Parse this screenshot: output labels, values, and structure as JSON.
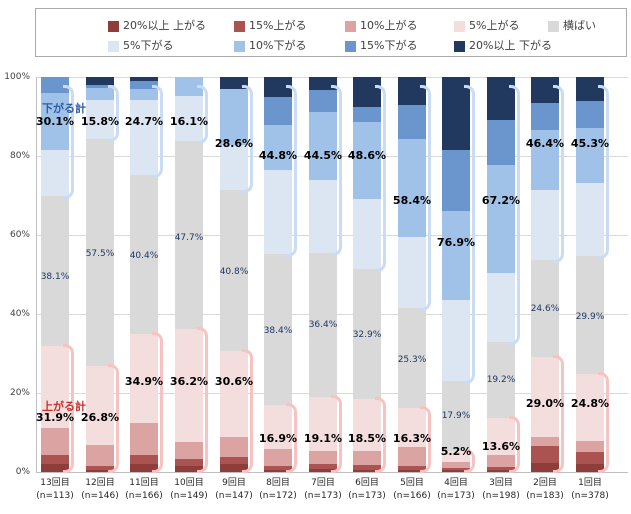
{
  "chart_data": {
    "type": "bar",
    "subtype": "stacked-100-percent",
    "grid": "on",
    "legend_position": "top",
    "y_ticks": [
      "0%",
      "20%",
      "40%",
      "60%",
      "80%",
      "100%"
    ],
    "ylim": [
      0,
      100
    ],
    "categories": [
      {
        "round": "13回目",
        "n": "(n=113)"
      },
      {
        "round": "12回目",
        "n": "(n=146)"
      },
      {
        "round": "11回目",
        "n": "(n=166)"
      },
      {
        "round": "10回目",
        "n": "(n=149)"
      },
      {
        "round": "9回目",
        "n": "(n=147)"
      },
      {
        "round": "8回目",
        "n": "(n=172)"
      },
      {
        "round": "7回目",
        "n": "(n=173)"
      },
      {
        "round": "6回目",
        "n": "(n=173)"
      },
      {
        "round": "5回目",
        "n": "(n=166)"
      },
      {
        "round": "4回目",
        "n": "(n=173)"
      },
      {
        "round": "3回目",
        "n": "(n=198)"
      },
      {
        "round": "2回目",
        "n": "(n=183)"
      },
      {
        "round": "1回目",
        "n": "(n=378)"
      }
    ],
    "series": [
      {
        "key": "up20",
        "label": "20%以上 上がる",
        "color": "#8f3d3a",
        "values": [
          2.0,
          0.5,
          2.0,
          1.5,
          2.0,
          0.5,
          0.8,
          0.5,
          0.6,
          0.4,
          0.4,
          2.3,
          2.0
        ]
      },
      {
        "key": "up15",
        "label": "15%上がる",
        "color": "#ab5350",
        "values": [
          2.3,
          1.0,
          2.3,
          1.8,
          1.8,
          1.0,
          1.3,
          1.3,
          1.0,
          0.6,
          0.8,
          4.3,
          3.0
        ]
      },
      {
        "key": "up10",
        "label": "10%上がる",
        "color": "#dba3a1",
        "values": [
          6.8,
          5.3,
          8.1,
          4.3,
          5.0,
          4.3,
          3.3,
          3.5,
          4.8,
          1.6,
          3.0,
          2.3,
          2.8
        ]
      },
      {
        "key": "up5",
        "label": "5%上がる",
        "color": "#f3dedd",
        "values": [
          20.8,
          20.0,
          22.5,
          28.6,
          21.8,
          11.1,
          13.7,
          13.2,
          9.9,
          2.6,
          9.4,
          20.1,
          17.0
        ]
      },
      {
        "key": "flat",
        "label": "横ばい",
        "color": "#d9d9d9",
        "values": [
          38.1,
          57.5,
          40.4,
          47.7,
          40.8,
          38.4,
          36.4,
          32.9,
          25.3,
          17.9,
          19.2,
          24.6,
          29.9
        ]
      },
      {
        "key": "down5",
        "label": "5%下がる",
        "color": "#dce6f2",
        "values": [
          11.6,
          9.9,
          19.0,
          11.4,
          11.4,
          21.3,
          18.4,
          17.7,
          18.0,
          20.5,
          17.5,
          17.7,
          18.5
        ]
      },
      {
        "key": "down10",
        "label": "10%下がる",
        "color": "#a0c2e8",
        "values": [
          14.4,
          3.1,
          2.7,
          4.7,
          14.2,
          11.4,
          17.2,
          19.5,
          24.6,
          22.5,
          27.4,
          15.2,
          13.9
        ]
      },
      {
        "key": "down15",
        "label": "15%下がる",
        "color": "#6b95cd",
        "values": [
          4.1,
          0.8,
          2.0,
          0.0,
          0.0,
          7.1,
          5.6,
          3.8,
          8.7,
          15.4,
          11.4,
          6.9,
          6.8
        ]
      },
      {
        "key": "down20",
        "label": "20%以上 下がる",
        "color": "#21395f",
        "values": [
          0.0,
          2.0,
          1.0,
          0.0,
          3.0,
          5.0,
          3.3,
          7.6,
          7.1,
          18.5,
          10.9,
          6.6,
          6.1
        ]
      }
    ],
    "totals": {
      "down": [
        30.1,
        15.8,
        24.7,
        16.1,
        28.6,
        44.8,
        44.5,
        48.6,
        58.4,
        76.9,
        67.2,
        46.4,
        45.3
      ],
      "flat": [
        38.1,
        57.5,
        40.4,
        47.7,
        40.8,
        38.4,
        36.4,
        32.9,
        25.3,
        17.9,
        19.2,
        24.6,
        29.9
      ],
      "up": [
        31.9,
        26.8,
        34.9,
        36.2,
        30.6,
        16.9,
        19.1,
        18.5,
        16.3,
        5.2,
        13.6,
        29.0,
        24.8
      ]
    },
    "annotations": {
      "down_group_label": "下がる計",
      "up_group_label": "上がる計",
      "label_y_pct": {
        "down": [
          88.5,
          88.5,
          88.5,
          88.5,
          83,
          80,
          80,
          80,
          68.5,
          58,
          68.5,
          83,
          83
        ],
        "flat": [
          49,
          55,
          54.5,
          59,
          50.5,
          35.5,
          37,
          34.5,
          28,
          14,
          23,
          41,
          39
        ],
        "up": [
          13.7,
          13.7,
          22.8,
          22.8,
          22.8,
          8.4,
          8.4,
          8.4,
          8.4,
          5.1,
          6.3,
          17.2,
          17.2
        ]
      }
    },
    "bracket_colors": {
      "down": "#c9dcf4",
      "up": "#f6c3c2"
    }
  },
  "legend": {
    "rows": [
      [
        "up20",
        "up15",
        "up10",
        "up5",
        "flat"
      ],
      [
        "down5",
        "down10",
        "down15",
        "down20"
      ]
    ]
  }
}
